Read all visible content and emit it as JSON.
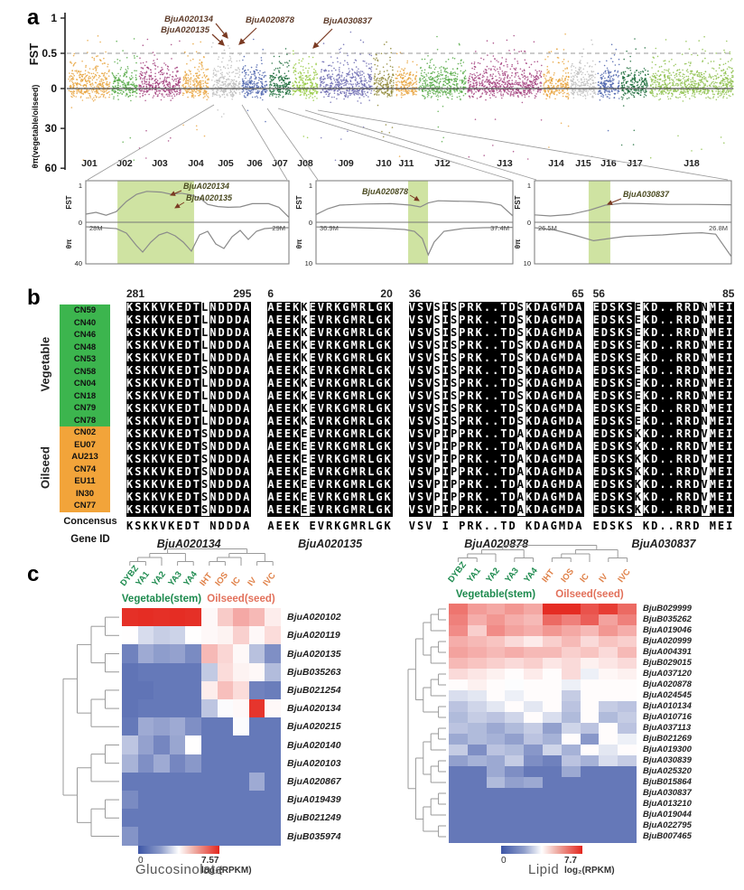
{
  "panels": {
    "a": "a",
    "b": "b",
    "c": "c"
  },
  "panel_a": {
    "fst_label": "FST",
    "theta_label": "θπ(vegetable/oilseed)",
    "fst_ticks": [
      "1",
      "0.5",
      "0"
    ],
    "theta_ticks": [
      "30",
      "60"
    ]
  },
  "panel_b": {
    "groups": [
      {
        "key": "veg",
        "name": "Vegetable",
        "color": "#3cb54e",
        "accessions": [
          "CN59",
          "CN40",
          "CN46",
          "CN48",
          "CN53",
          "CN58",
          "CN04",
          "CN18",
          "CN79",
          "CN78"
        ]
      },
      {
        "key": "oil",
        "name": "Oilseed",
        "color": "#f2a43a",
        "accessions": [
          "CN02",
          "EU07",
          "AU213",
          "CN74",
          "EU11",
          "IN30",
          "CN77"
        ]
      }
    ],
    "consensus_label": "Concensus",
    "gene_id_label": "Gene ID",
    "blocks": [
      {
        "start": "281",
        "end": "295",
        "gene": "BjuA020134",
        "parts": [
          "KSKKVKEDT",
          "NDDDA"
        ],
        "veg": [
          "L"
        ],
        "oil": [
          "S"
        ],
        "overrides": {
          "CN58": [
            "S"
          ]
        }
      },
      {
        "start": "6",
        "end": "20",
        "gene": "BjuA020135",
        "parts": [
          "AEEK",
          "EVRKGMRLGK"
        ],
        "veg": [
          "K"
        ],
        "oil": [
          "E"
        ],
        "overrides": {}
      },
      {
        "start": "36",
        "end": "65",
        "gene": "BjuA020878",
        "parts": [
          "VSV",
          "I",
          "PRK..TD",
          "KDAGMDA"
        ],
        "veg": [
          "S",
          "S",
          "S"
        ],
        "oil": [
          "P",
          "P",
          "A"
        ],
        "overrides": {}
      },
      {
        "start": "56",
        "end": "85",
        "gene": "BjuA030837",
        "parts": [
          "EDSKS",
          "KD..RRD",
          "MEI"
        ],
        "veg": [
          "E",
          "N"
        ],
        "oil": [
          "K",
          "V"
        ],
        "overrides": {}
      }
    ]
  },
  "panel_c": {
    "veg_group_label": "Vegetable(stem)",
    "oil_group_label": "Oilseed(seed)",
    "veg_color": "#1d8a4e",
    "oil_color": "#e0824a"
  },
  "chart_data": [
    {
      "type": "scatter",
      "name": "fst-thetapi-manhattan",
      "fst_axis": {
        "label": "FST",
        "ticks": [
          1,
          0.5,
          0
        ],
        "range": [
          0,
          1
        ],
        "threshold": 0.5
      },
      "theta_axis": {
        "label": "θπ(vegetable/oilseed)",
        "ticks": [
          30,
          60
        ],
        "range": [
          0,
          60
        ]
      },
      "annotations": [
        "BjuA020134",
        "BjuA020135",
        "BjuA020878",
        "BjuA030837"
      ],
      "chromosomes": [
        {
          "name": "J01",
          "color": "#E8A33C",
          "width": 46
        },
        {
          "name": "J02",
          "color": "#55A945",
          "width": 28
        },
        {
          "name": "J03",
          "color": "#A23E7C",
          "width": 46
        },
        {
          "name": "J04",
          "color": "#E8A33C",
          "width": 30
        },
        {
          "name": "J05",
          "color": "#BDBDBD",
          "width": 32
        },
        {
          "name": "J06",
          "color": "#4A62AC",
          "width": 28
        },
        {
          "name": "J07",
          "color": "#1A6B38",
          "width": 24
        },
        {
          "name": "J08",
          "color": "#94C83E",
          "width": 28
        },
        {
          "name": "J09",
          "color": "#6A68B0",
          "width": 58
        },
        {
          "name": "J10",
          "color": "#8C8430",
          "width": 22
        },
        {
          "name": "J11",
          "color": "#E8A33C",
          "width": 24
        },
        {
          "name": "J12",
          "color": "#55A945",
          "width": 52
        },
        {
          "name": "J13",
          "color": "#A23E7C",
          "width": 82
        },
        {
          "name": "J14",
          "color": "#E8A33C",
          "width": 28
        },
        {
          "name": "J15",
          "color": "#BDBDBD",
          "width": 28
        },
        {
          "name": "J16",
          "color": "#4A62AC",
          "width": 24
        },
        {
          "name": "J17",
          "color": "#1A6B38",
          "width": 30
        },
        {
          "name": "J18",
          "color": "#8DC04B",
          "width": 92
        }
      ]
    },
    {
      "type": "line",
      "name": "inset-J05",
      "genes": [
        "BjuA020134",
        "BjuA020135"
      ],
      "x_start_label": "28M",
      "x_end_label": "29M",
      "fst_ticks": [
        "1",
        "0"
      ],
      "theta_max": 40,
      "theta_tick_label": "40",
      "band": [
        0.156,
        0.533
      ],
      "fst_curve": [
        [
          0,
          0.15
        ],
        [
          0.05,
          0.2
        ],
        [
          0.1,
          0.12
        ],
        [
          0.15,
          0.22
        ],
        [
          0.2,
          0.5
        ],
        [
          0.25,
          0.7
        ],
        [
          0.3,
          0.78
        ],
        [
          0.37,
          0.76
        ],
        [
          0.42,
          0.7
        ],
        [
          0.47,
          0.73
        ],
        [
          0.52,
          0.68
        ],
        [
          0.56,
          0.6
        ],
        [
          0.6,
          0.42
        ],
        [
          0.65,
          0.36
        ],
        [
          0.7,
          0.34
        ],
        [
          0.76,
          0.35
        ],
        [
          0.82,
          0.44
        ],
        [
          0.9,
          0.44
        ],
        [
          0.95,
          0.34
        ],
        [
          1,
          0.06
        ]
      ],
      "theta_curve": [
        [
          0,
          3
        ],
        [
          0.08,
          4
        ],
        [
          0.15,
          5
        ],
        [
          0.2,
          10
        ],
        [
          0.25,
          24
        ],
        [
          0.28,
          31
        ],
        [
          0.32,
          20
        ],
        [
          0.36,
          12
        ],
        [
          0.4,
          9
        ],
        [
          0.44,
          13
        ],
        [
          0.48,
          20
        ],
        [
          0.52,
          30
        ],
        [
          0.56,
          12
        ],
        [
          0.6,
          8
        ],
        [
          0.64,
          22
        ],
        [
          0.68,
          27
        ],
        [
          0.72,
          14
        ],
        [
          0.76,
          7
        ],
        [
          0.8,
          17
        ],
        [
          0.84,
          8
        ],
        [
          0.88,
          5
        ],
        [
          0.94,
          4
        ],
        [
          1,
          4
        ]
      ]
    },
    {
      "type": "line",
      "name": "inset-J06",
      "genes": [
        "BjuA020878"
      ],
      "x_start_label": "36.9M",
      "x_end_label": "37.4M",
      "fst_ticks": [
        "1",
        "0"
      ],
      "theta_max": 10,
      "theta_tick_label": "10",
      "band": [
        0.468,
        0.569
      ],
      "fst_curve": [
        [
          0,
          0.14
        ],
        [
          0.06,
          0.3
        ],
        [
          0.12,
          0.4
        ],
        [
          0.25,
          0.43
        ],
        [
          0.38,
          0.44
        ],
        [
          0.48,
          0.4
        ],
        [
          0.53,
          0.35
        ],
        [
          0.57,
          0.46
        ],
        [
          0.62,
          0.52
        ],
        [
          0.7,
          0.51
        ],
        [
          0.8,
          0.5
        ],
        [
          0.88,
          0.47
        ],
        [
          0.94,
          0.4
        ],
        [
          1,
          0.1
        ]
      ],
      "theta_curve": [
        [
          0,
          0.8
        ],
        [
          0.2,
          1
        ],
        [
          0.35,
          1.2
        ],
        [
          0.45,
          1.5
        ],
        [
          0.5,
          2
        ],
        [
          0.54,
          4
        ],
        [
          0.57,
          8.5
        ],
        [
          0.6,
          5
        ],
        [
          0.65,
          2
        ],
        [
          0.75,
          1.2
        ],
        [
          0.85,
          1
        ],
        [
          1,
          0.9
        ]
      ]
    },
    {
      "type": "line",
      "name": "inset-J08",
      "genes": [
        "BjuA030837"
      ],
      "x_start_label": "26.5M",
      "x_end_label": "26.8M",
      "fst_ticks": [
        "1",
        "0"
      ],
      "theta_max": 10,
      "theta_tick_label": "10",
      "band": [
        0.275,
        0.385
      ],
      "fst_curve": [
        [
          0,
          0.13
        ],
        [
          0.08,
          0.1
        ],
        [
          0.18,
          0.14
        ],
        [
          0.28,
          0.26
        ],
        [
          0.36,
          0.4
        ],
        [
          0.45,
          0.45
        ],
        [
          0.55,
          0.44
        ],
        [
          0.68,
          0.42
        ],
        [
          0.82,
          0.42
        ],
        [
          1,
          0.41
        ]
      ],
      "theta_curve": [
        [
          0,
          1
        ],
        [
          0.1,
          1.6
        ],
        [
          0.2,
          3
        ],
        [
          0.3,
          4.6
        ],
        [
          0.38,
          4
        ],
        [
          0.46,
          3.4
        ],
        [
          0.55,
          3.2
        ],
        [
          0.65,
          3
        ],
        [
          0.75,
          2.6
        ],
        [
          0.85,
          2.4
        ],
        [
          0.92,
          2.8
        ],
        [
          1,
          9
        ]
      ]
    },
    {
      "type": "heatmap",
      "title": "Glucosinolate",
      "columns": [
        "DYBZ",
        "YA1",
        "YA2",
        "YA3",
        "YA4",
        "IHT",
        "IOS",
        "IC",
        "IV",
        "IVC"
      ],
      "veg_cols": 5,
      "rows": [
        "BjuA020102",
        "BjuA020119",
        "BjuA020135",
        "BjuB035263",
        "BjuB021254",
        "BjuA020134",
        "BjuA020215",
        "BjuA020140",
        "BjuA020103",
        "BjuA020867",
        "BjuA019439",
        "BjuB021249",
        "BjuB035974"
      ],
      "values": [
        [
          7.4,
          7.45,
          7.4,
          7.45,
          7.4,
          3.9,
          4.7,
          5.3,
          5.0,
          4.1
        ],
        [
          3.8,
          3.0,
          2.7,
          2.8,
          3.8,
          3.9,
          4.0,
          4.6,
          3.9,
          4.4
        ],
        [
          1.0,
          1.9,
          1.6,
          1.7,
          1.2,
          5.0,
          4.5,
          3.9,
          2.4,
          1.3
        ],
        [
          0.7,
          0.8,
          0.8,
          0.8,
          0.8,
          2.6,
          4.4,
          4.0,
          3.9,
          2.3
        ],
        [
          0.7,
          0.7,
          0.8,
          0.8,
          0.8,
          4.1,
          4.9,
          4.4,
          1.0,
          0.9
        ],
        [
          0.7,
          0.8,
          0.8,
          0.8,
          0.8,
          2.5,
          3.7,
          3.9,
          7.3,
          3.9
        ],
        [
          0.8,
          1.9,
          1.7,
          1.9,
          1.3,
          0.8,
          0.8,
          3.7,
          0.8,
          0.8
        ],
        [
          2.5,
          1.7,
          1.1,
          1.8,
          3.8,
          0.8,
          0.8,
          0.8,
          0.8,
          0.8
        ],
        [
          2.1,
          1.3,
          1.9,
          1.1,
          1.5,
          0.8,
          0.8,
          0.8,
          0.8,
          0.8
        ],
        [
          0.8,
          0.8,
          0.8,
          0.8,
          0.8,
          0.8,
          0.8,
          0.8,
          1.9,
          0.8
        ],
        [
          1.2,
          0.8,
          0.8,
          0.8,
          0.8,
          0.8,
          0.8,
          0.8,
          0.8,
          0.8
        ],
        [
          0.8,
          0.8,
          0.8,
          0.8,
          0.8,
          0.8,
          0.8,
          0.8,
          0.8,
          0.8
        ],
        [
          1.4,
          0.8,
          0.8,
          0.8,
          0.8,
          0.8,
          0.8,
          0.8,
          0.8,
          0.8
        ]
      ],
      "scale": {
        "min": 0,
        "max": 7.57,
        "min_label": "0",
        "max_label": "7.57",
        "unit": "log₂(RPKM)"
      }
    },
    {
      "type": "heatmap",
      "title": "Lipid",
      "columns": [
        "DYBZ",
        "YA1",
        "YA2",
        "YA3",
        "YA4",
        "IHT",
        "IOS",
        "IC",
        "IV",
        "IVC"
      ],
      "veg_cols": 5,
      "rows": [
        "BjuB029999",
        "BjuB035262",
        "BjuA019046",
        "BjuA020999",
        "BjuA004391",
        "BjuB029015",
        "BjuA037120",
        "BjuA020878",
        "BjuA024545",
        "BjuA010134",
        "BjuA010716",
        "BjuA037113",
        "BjuB021269",
        "BjuA019300",
        "BjuA030839",
        "BjuA025320",
        "BjuB015864",
        "BjuA030837",
        "BjuA013210",
        "BjuA019044",
        "BjuA022795",
        "BjuB007465"
      ],
      "values": [
        [
          6.3,
          5.6,
          5.4,
          5.7,
          5.4,
          7.6,
          7.6,
          6.9,
          7.3,
          6.5
        ],
        [
          6.1,
          5.3,
          5.7,
          5.3,
          5.1,
          6.5,
          6.1,
          6.7,
          5.5,
          6.1
        ],
        [
          5.9,
          4.7,
          5.9,
          5.5,
          5.3,
          5.7,
          5.4,
          5.1,
          5.7,
          5.3
        ],
        [
          5.3,
          5.1,
          4.9,
          4.5,
          4.2,
          4.7,
          5.1,
          4.5,
          4.9,
          4.7
        ],
        [
          5.5,
          5.3,
          5.1,
          5.3,
          5.1,
          5.1,
          4.7,
          4.9,
          4.5,
          5.1
        ],
        [
          5.1,
          4.9,
          4.7,
          4.5,
          4.7,
          4.3,
          4.5,
          4.1,
          4.3,
          4.5
        ],
        [
          4.5,
          4.3,
          4.1,
          3.9,
          4.2,
          3.9,
          4.5,
          3.5,
          4.0,
          4.1
        ],
        [
          3.9,
          4.1,
          3.9,
          3.8,
          3.9,
          3.9,
          3.5,
          3.9,
          3.9,
          3.9
        ],
        [
          3.1,
          3.3,
          3.9,
          3.5,
          3.9,
          3.9,
          2.7,
          3.9,
          3.9,
          3.9
        ],
        [
          2.5,
          2.9,
          3.3,
          3.9,
          3.3,
          3.9,
          2.5,
          3.9,
          2.7,
          2.5
        ],
        [
          2.3,
          2.7,
          2.5,
          2.9,
          3.9,
          3.1,
          2.3,
          3.9,
          2.3,
          2.7
        ],
        [
          2.5,
          2.3,
          1.9,
          2.3,
          2.7,
          1.7,
          2.9,
          2.5,
          3.9,
          2.5
        ],
        [
          1.9,
          2.3,
          2.1,
          1.7,
          2.5,
          2.1,
          3.9,
          1.5,
          3.9,
          3.5
        ],
        [
          2.7,
          1.3,
          2.5,
          2.3,
          1.5,
          2.9,
          2.1,
          3.9,
          3.3,
          3.9
        ],
        [
          1.7,
          2.1,
          1.9,
          2.7,
          1.3,
          1.0,
          2.5,
          2.1,
          3.1,
          2.7
        ],
        [
          0.8,
          0.8,
          1.9,
          1.3,
          0.8,
          0.8,
          1.9,
          0.8,
          0.8,
          0.8
        ],
        [
          0.8,
          0.8,
          2.3,
          1.7,
          1.9,
          0.8,
          0.8,
          0.8,
          0.8,
          0.8
        ],
        [
          0.8,
          0.8,
          0.8,
          0.8,
          0.8,
          0.8,
          0.8,
          0.8,
          0.8,
          0.8
        ],
        [
          0.8,
          0.8,
          0.8,
          0.8,
          0.8,
          0.8,
          0.8,
          0.8,
          0.8,
          0.8
        ],
        [
          0.8,
          0.8,
          0.8,
          0.8,
          0.8,
          0.8,
          0.8,
          0.8,
          0.8,
          0.8
        ],
        [
          0.8,
          0.8,
          0.8,
          0.8,
          0.8,
          0.8,
          0.8,
          0.8,
          0.8,
          0.8
        ],
        [
          0.8,
          0.8,
          0.8,
          0.8,
          0.8,
          0.8,
          0.8,
          0.8,
          0.8,
          0.8
        ]
      ],
      "scale": {
        "min": 0,
        "max": 7.7,
        "min_label": "0",
        "max_label": "7.7",
        "unit": "log₂(RPKM)"
      }
    }
  ]
}
